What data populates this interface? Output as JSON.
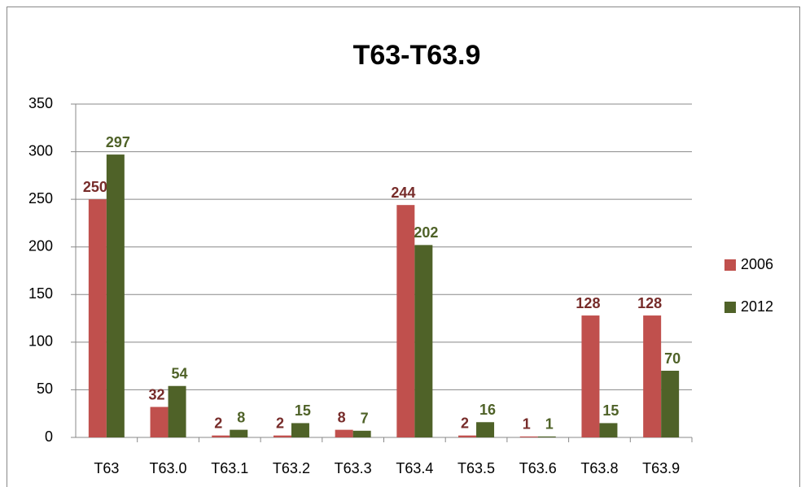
{
  "chart_data": {
    "type": "bar",
    "title": "T63-T63.9",
    "categories": [
      "T63",
      "T63.0",
      "T63.1",
      "T63.2",
      "T63.3",
      "T63.4",
      "T63.5",
      "T63.6",
      "T63.8",
      "T63.9"
    ],
    "series": [
      {
        "name": "2006",
        "color": "#c0504d",
        "label_color": "#772c2a",
        "values": [
          250,
          32,
          2,
          2,
          8,
          244,
          2,
          1,
          128,
          128
        ]
      },
      {
        "name": "2012",
        "color": "#4f6228",
        "label_color": "#4f6228",
        "values": [
          297,
          54,
          8,
          15,
          7,
          202,
          16,
          1,
          15,
          70
        ]
      }
    ],
    "ylim": [
      0,
      350
    ],
    "yticks": [
      0,
      50,
      100,
      150,
      200,
      250,
      300,
      350
    ],
    "grid": true,
    "legend": "right"
  }
}
